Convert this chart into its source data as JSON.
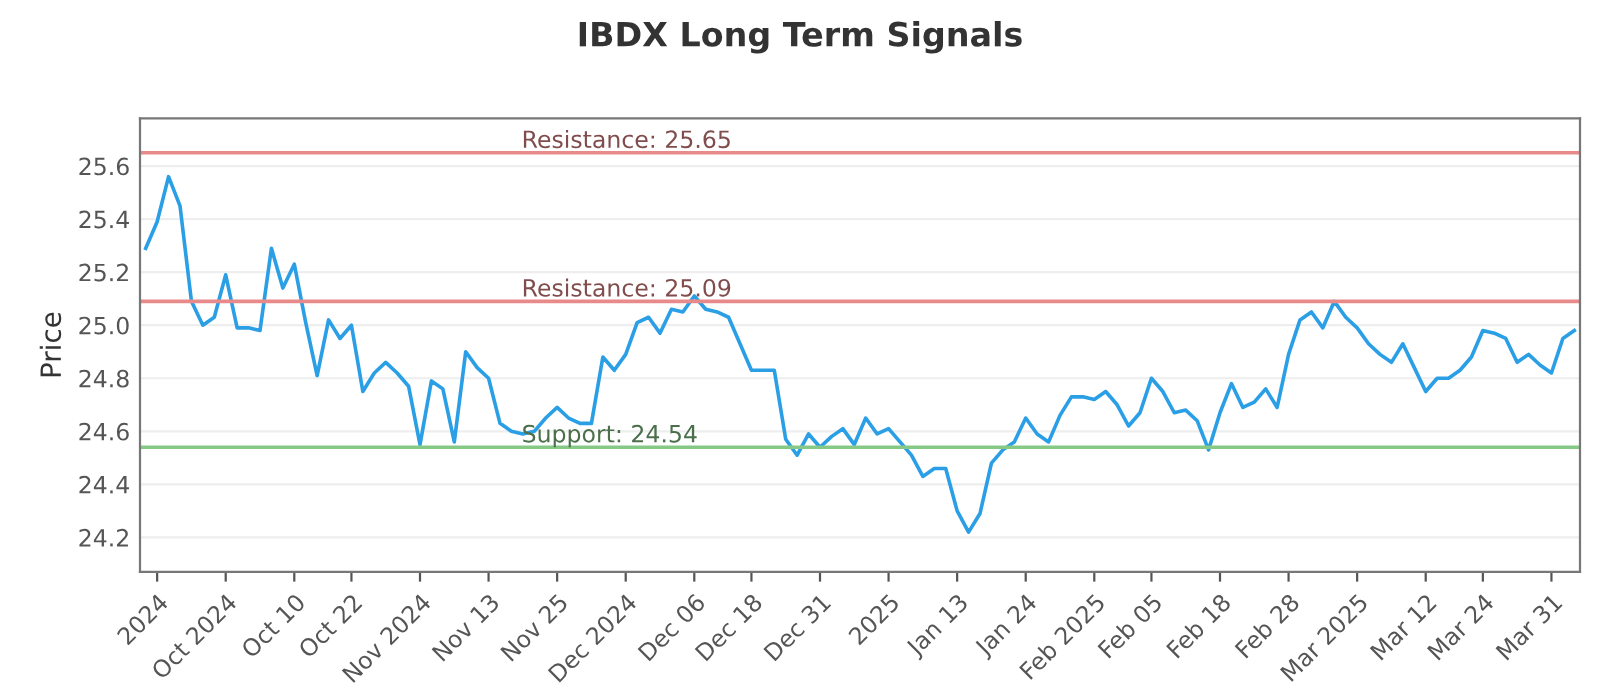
{
  "chart_data": {
    "type": "line",
    "title": "IBDX Long Term Signals",
    "ylabel": "Price",
    "categories": [
      null,
      "2024",
      null,
      null,
      null,
      null,
      null,
      "Oct 2024",
      null,
      null,
      null,
      null,
      null,
      "Oct 10",
      null,
      null,
      null,
      null,
      "Oct 22",
      null,
      null,
      null,
      null,
      null,
      "Nov 2024",
      null,
      null,
      null,
      null,
      null,
      "Nov 13",
      null,
      null,
      null,
      null,
      null,
      "Nov 25",
      null,
      null,
      null,
      null,
      null,
      "Dec 2024",
      null,
      null,
      null,
      null,
      null,
      "Dec 06",
      null,
      null,
      null,
      null,
      "Dec 18",
      null,
      null,
      null,
      null,
      null,
      "Dec 31",
      null,
      null,
      null,
      null,
      null,
      "2025",
      null,
      null,
      null,
      null,
      null,
      "Jan 13",
      null,
      null,
      null,
      null,
      null,
      "Jan 24",
      null,
      null,
      null,
      null,
      null,
      "Feb 2025",
      null,
      null,
      null,
      null,
      "Feb 05",
      null,
      null,
      null,
      null,
      null,
      "Feb 18",
      null,
      null,
      null,
      null,
      null,
      "Feb 28",
      null,
      null,
      null,
      null,
      null,
      "Mar 2025",
      null,
      null,
      null,
      null,
      null,
      "Mar 12",
      null,
      null,
      null,
      null,
      "Mar 24",
      null,
      null,
      null,
      null,
      null,
      "Mar 31",
      null,
      null
    ],
    "series": [
      {
        "color": "#2a9fe6",
        "values": [
          25.29,
          25.39,
          25.56,
          25.45,
          25.09,
          25.0,
          25.03,
          25.19,
          24.99,
          24.99,
          24.98,
          25.29,
          25.14,
          25.23,
          25.01,
          24.81,
          25.02,
          24.95,
          25.0,
          24.75,
          24.82,
          24.86,
          24.82,
          24.77,
          24.55,
          24.79,
          24.76,
          24.56,
          24.9,
          24.84,
          24.8,
          24.63,
          24.6,
          24.59,
          24.6,
          24.65,
          24.69,
          24.65,
          24.63,
          24.63,
          24.88,
          24.83,
          24.89,
          25.01,
          25.03,
          24.97,
          25.06,
          25.05,
          25.11,
          25.06,
          25.05,
          25.03,
          24.93,
          24.83,
          24.83,
          24.83,
          24.57,
          24.51,
          24.59,
          24.54,
          24.58,
          24.61,
          24.55,
          24.65,
          24.59,
          24.61,
          24.56,
          24.51,
          24.43,
          24.46,
          24.46,
          24.3,
          24.22,
          24.29,
          24.48,
          24.53,
          24.56,
          24.65,
          24.59,
          24.56,
          24.66,
          24.73,
          24.73,
          24.72,
          24.75,
          24.7,
          24.62,
          24.67,
          24.8,
          24.75,
          24.67,
          24.68,
          24.64,
          24.53,
          24.67,
          24.78,
          24.69,
          24.71,
          24.76,
          24.69,
          24.89,
          25.02,
          25.05,
          24.99,
          25.09,
          25.03,
          24.99,
          24.93,
          24.89,
          24.86,
          24.93,
          24.84,
          24.75,
          24.8,
          24.8,
          24.83,
          24.88,
          24.98,
          24.97,
          24.95,
          24.86,
          24.89,
          24.85,
          24.82,
          24.95,
          24.98
        ]
      }
    ],
    "ylim": [
      24.07,
      25.78
    ],
    "yticks": [
      {
        "value": 24.2,
        "label": "24.2"
      },
      {
        "value": 24.4,
        "label": "24.4"
      },
      {
        "value": 24.6,
        "label": "24.6"
      },
      {
        "value": 24.8,
        "label": "24.8"
      },
      {
        "value": 25.0,
        "label": "25.0"
      },
      {
        "value": 25.2,
        "label": "25.2"
      },
      {
        "value": 25.4,
        "label": "25.4"
      },
      {
        "value": 25.6,
        "label": "25.6"
      }
    ],
    "grid": "y",
    "marker": "none",
    "line_style": "solid",
    "ref_lines": [
      {
        "axis": "y",
        "value": 25.65,
        "label": "Resistance: 25.65",
        "color": "#e88a8a"
      },
      {
        "axis": "y",
        "value": 25.09,
        "label": "Resistance: 25.09",
        "color": "#e88a8a"
      },
      {
        "axis": "y",
        "value": 24.54,
        "label": "Support: 24.54",
        "color": "#86c986"
      }
    ]
  }
}
